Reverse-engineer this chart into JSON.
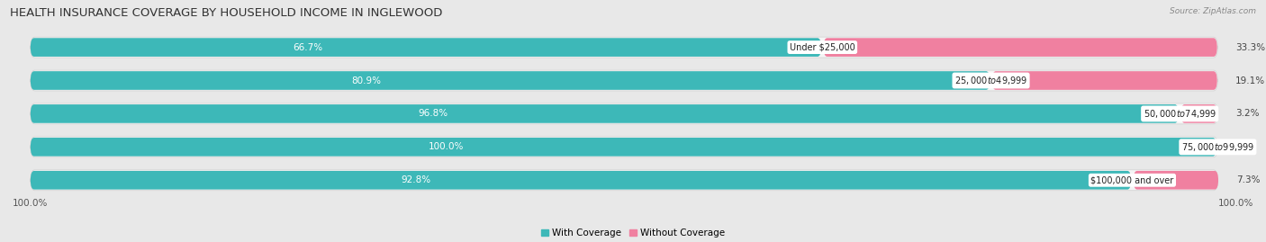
{
  "title": "HEALTH INSURANCE COVERAGE BY HOUSEHOLD INCOME IN INGLEWOOD",
  "source": "Source: ZipAtlas.com",
  "categories": [
    "Under $25,000",
    "$25,000 to $49,999",
    "$50,000 to $74,999",
    "$75,000 to $99,999",
    "$100,000 and over"
  ],
  "with_coverage": [
    66.7,
    80.9,
    96.8,
    100.0,
    92.8
  ],
  "without_coverage": [
    33.3,
    19.1,
    3.2,
    0.0,
    7.3
  ],
  "color_with": "#3db8b8",
  "color_without": "#f080a0",
  "color_without_light": "#f9b8cc",
  "bg_color": "#e8e8e8",
  "bar_bg": "#f5f5f5",
  "bar_bg_outline": "#d0d0d0",
  "title_fontsize": 9.5,
  "label_fontsize": 7.5,
  "source_fontsize": 6.5,
  "tick_fontsize": 7.5,
  "bar_height": 0.62,
  "total_width": 100
}
